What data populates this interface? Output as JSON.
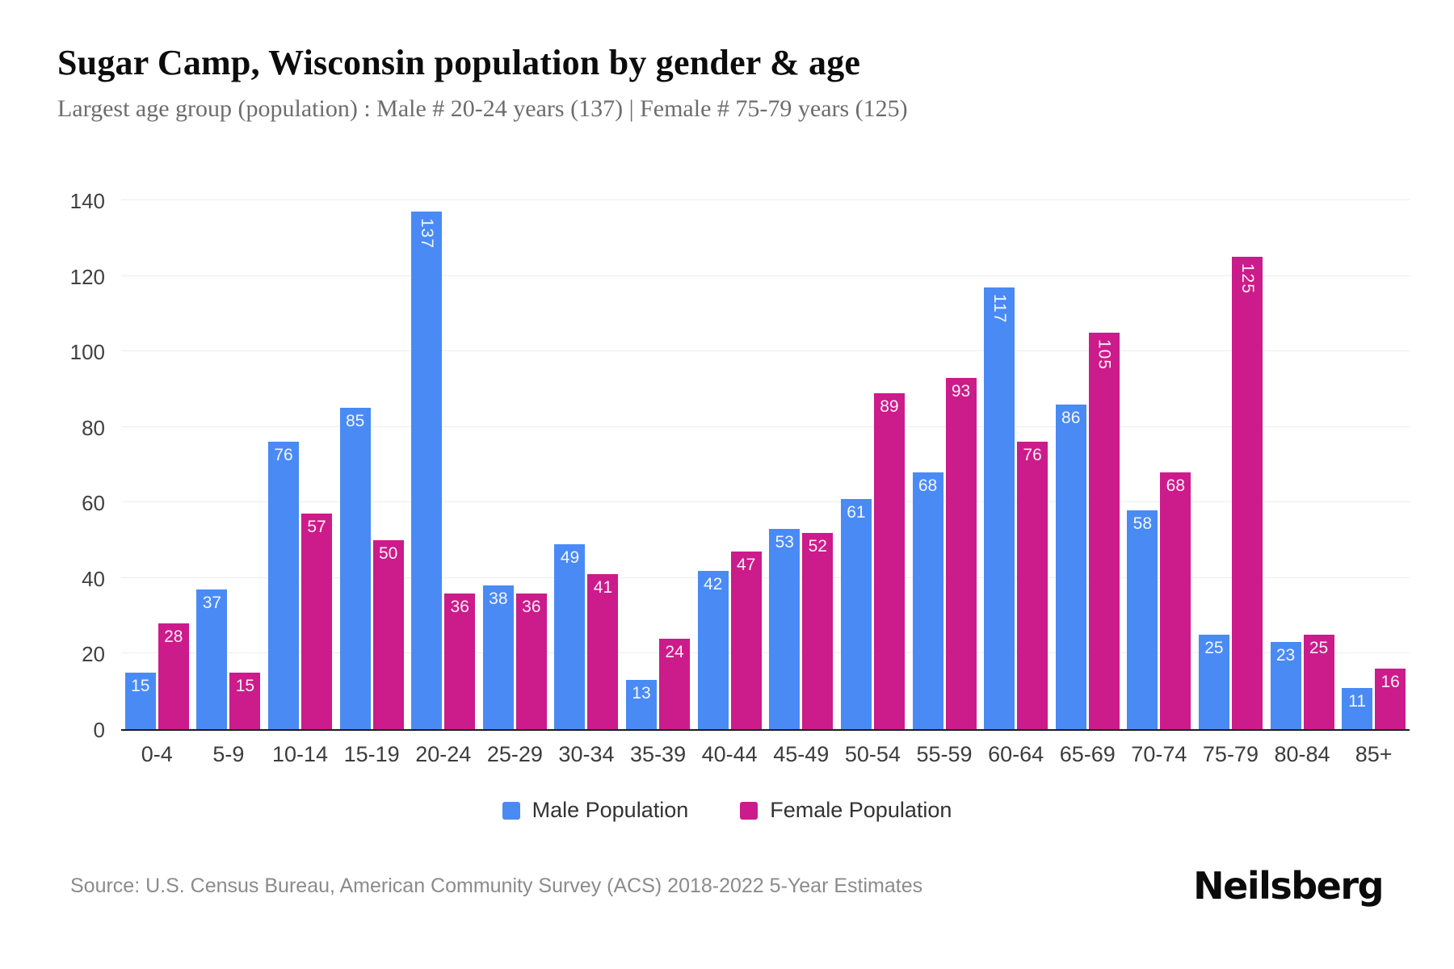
{
  "header": {
    "title": "Sugar Camp, Wisconsin population by gender & age",
    "subtitle": "Largest age group (population) : Male # 20-24 years (137) | Female # 75-79 years (125)"
  },
  "chart_data": {
    "type": "bar",
    "title": "Sugar Camp, Wisconsin population by gender & age",
    "categories": [
      "0-4",
      "5-9",
      "10-14",
      "15-19",
      "20-24",
      "25-29",
      "30-34",
      "35-39",
      "40-44",
      "45-49",
      "50-54",
      "55-59",
      "60-64",
      "65-69",
      "70-74",
      "75-79",
      "80-84",
      "85+"
    ],
    "series": [
      {
        "name": "Male Population",
        "color": "#4a8af4",
        "values": [
          15,
          37,
          76,
          85,
          137,
          38,
          49,
          13,
          42,
          53,
          61,
          68,
          117,
          86,
          58,
          25,
          23,
          11
        ]
      },
      {
        "name": "Female Population",
        "color": "#cc1b8a",
        "values": [
          28,
          15,
          57,
          50,
          36,
          36,
          41,
          24,
          47,
          52,
          89,
          93,
          76,
          105,
          68,
          125,
          25,
          16
        ]
      }
    ],
    "xlabel": "",
    "ylabel": "",
    "ylim": [
      0,
      140
    ],
    "yticks": [
      0,
      20,
      40,
      60,
      80,
      100,
      120,
      140
    ],
    "grid": true,
    "legend_position": "bottom",
    "value_labels": "inside-top, rotated vertical when value >= 100"
  },
  "colors": {
    "male": "#4a8af4",
    "female": "#cc1b8a",
    "grid_line": "#ededed",
    "axis_line": "#191c22",
    "bar_value_text": "#ffffff"
  },
  "footer": {
    "source": "Source: U.S. Census Bureau, American Community Survey (ACS) 2018-2022 5-Year Estimates",
    "logo": "Neilsberg"
  }
}
